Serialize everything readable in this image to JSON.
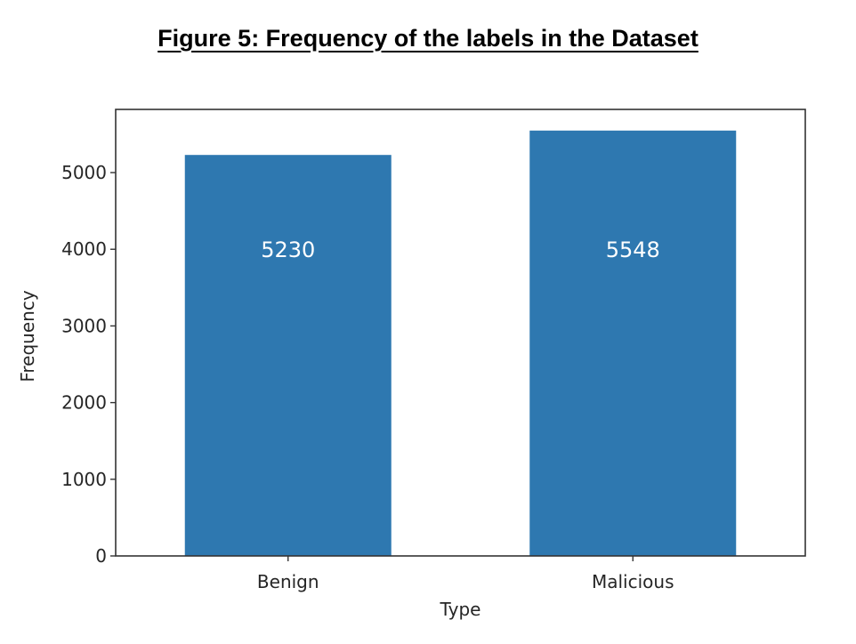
{
  "figure": {
    "title": "Figure 5: Frequency of the labels in the Dataset"
  },
  "chart_data": {
    "type": "bar",
    "title": "",
    "categories": [
      "Benign",
      "Malicious"
    ],
    "values": [
      5230,
      5548
    ],
    "data_labels": [
      "5230",
      "5548"
    ],
    "xlabel": "Type",
    "ylabel": "Frequency",
    "ylim": [
      0,
      5824
    ],
    "yticks": [
      0,
      1000,
      2000,
      3000,
      4000,
      5000
    ],
    "ytick_labels": [
      "0",
      "1000",
      "2000",
      "3000",
      "4000",
      "5000"
    ],
    "grid": false,
    "bar_color": "#2e78b0",
    "label_color": "#ffffff"
  }
}
